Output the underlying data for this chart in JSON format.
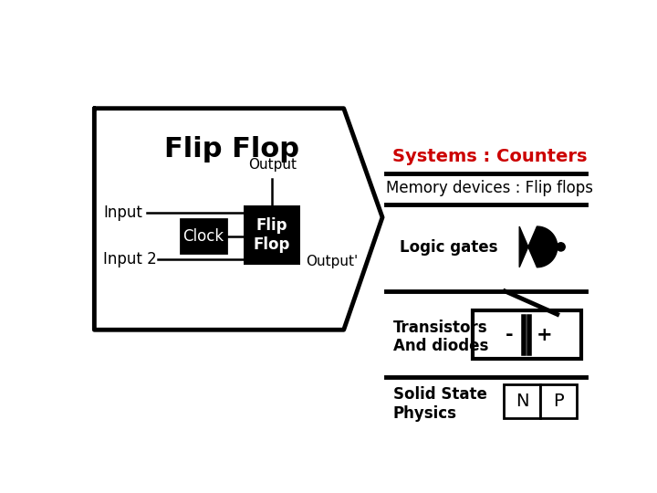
{
  "bg_color": "#ffffff",
  "text_color": "#000000",
  "red_color": "#cc0000",
  "title": "Flip Flop",
  "output_label": "Output",
  "output_prime": "Output'",
  "input_label": "Input",
  "input2_label": "Input 2",
  "clock_label": "Clock",
  "flip_flop_label": "Flip\nFlop",
  "systems_counters": "Systems : Counters",
  "memory_devices": "Memory devices : Flip flops",
  "logic_gates": "Logic gates",
  "transistors": "Transistors\nAnd diodes",
  "solid_state": "Solid State\nPhysics",
  "lw_thick": 3.5,
  "lw_thin": 1.8
}
